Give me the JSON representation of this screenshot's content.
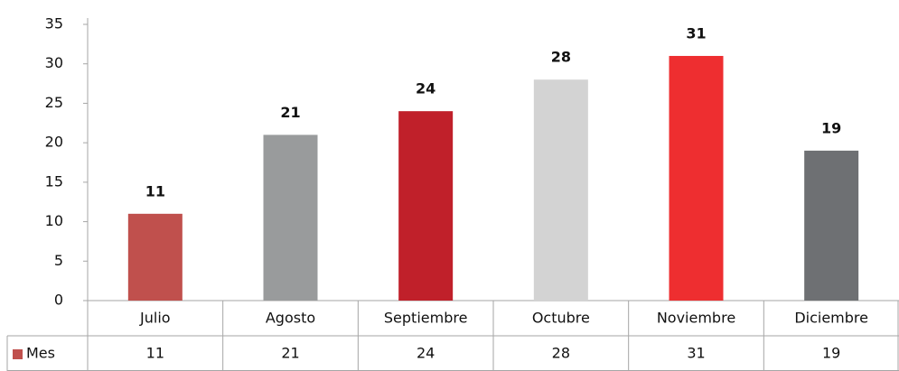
{
  "chart_data": {
    "type": "bar",
    "categories": [
      "Julio",
      "Agosto",
      "Septiembre",
      "Octubre",
      "Noviembre",
      "Diciembre"
    ],
    "series": [
      {
        "name": "Mes",
        "color": "#c0504d",
        "colors": [
          "#c0504d",
          "#999b9c",
          "#c0202a",
          "#d3d3d3",
          "#ee2e30",
          "#6e7073"
        ],
        "values": [
          11,
          21,
          24,
          28,
          31,
          19
        ]
      }
    ],
    "ylim": [
      0,
      35
    ],
    "yticks": [
      0,
      5,
      10,
      15,
      20,
      25,
      30,
      35
    ],
    "grid": false,
    "data_table": true
  }
}
